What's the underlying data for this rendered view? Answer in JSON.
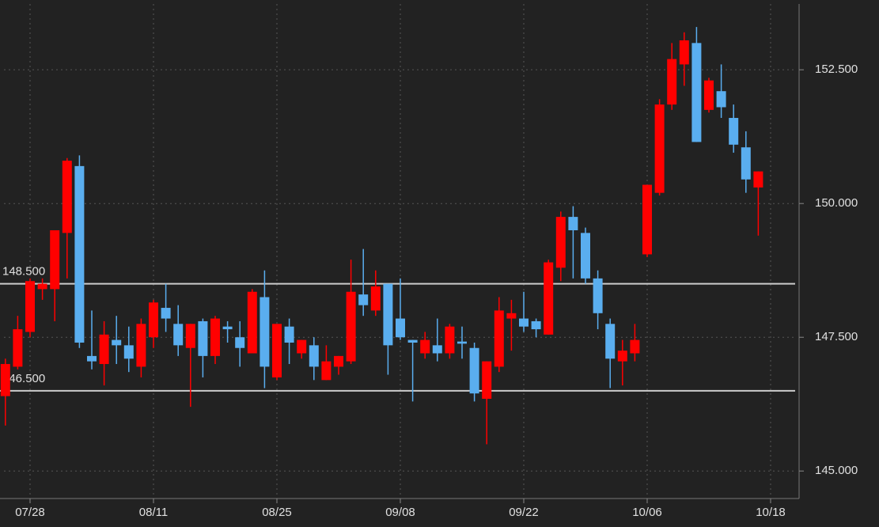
{
  "chart_data": {
    "type": "candlestick",
    "categories": [
      null,
      null,
      "07/28",
      null,
      null,
      null,
      null,
      null,
      null,
      null,
      null,
      null,
      "08/11",
      null,
      null,
      null,
      null,
      null,
      null,
      null,
      null,
      null,
      "08/25",
      null,
      null,
      null,
      null,
      null,
      null,
      null,
      null,
      null,
      "09/08",
      null,
      null,
      null,
      null,
      null,
      null,
      null,
      null,
      null,
      "09/22",
      null,
      null,
      null,
      null,
      null,
      null,
      null,
      null,
      null,
      "10/06",
      null,
      null,
      null,
      null,
      null,
      null,
      null,
      null,
      null,
      "10/18"
    ],
    "open": [
      146.4,
      146.95,
      147.6,
      148.4,
      148.4,
      149.45,
      150.7,
      147.15,
      147.0,
      147.45,
      147.35,
      146.95,
      147.5,
      148.05,
      147.75,
      147.3,
      147.8,
      147.15,
      147.7,
      147.5,
      147.2,
      148.25,
      146.75,
      147.7,
      147.2,
      147.35,
      146.7,
      146.95,
      147.05,
      148.3,
      148.0,
      148.5,
      147.85,
      147.45,
      147.2,
      147.35,
      147.2,
      147.42,
      147.3,
      146.35,
      146.95,
      147.85,
      147.85,
      147.8,
      147.55,
      148.8,
      149.75,
      149.45,
      148.6,
      147.75,
      147.05,
      147.2,
      149.05,
      150.2,
      151.85,
      152.6,
      153.0,
      151.75,
      152.1,
      151.6,
      151.05,
      150.3,
      null
    ],
    "high": [
      147.1,
      147.9,
      148.6,
      148.6,
      149.5,
      150.85,
      150.9,
      148.0,
      147.8,
      147.9,
      147.7,
      147.85,
      148.2,
      148.5,
      148.1,
      147.75,
      147.85,
      147.9,
      147.8,
      147.8,
      148.4,
      148.75,
      147.75,
      147.85,
      147.45,
      147.5,
      147.35,
      147.15,
      148.95,
      149.15,
      148.75,
      148.5,
      148.6,
      147.45,
      147.6,
      147.85,
      147.75,
      147.7,
      147.4,
      147.05,
      148.25,
      148.2,
      148.35,
      147.85,
      148.95,
      149.85,
      149.95,
      149.55,
      148.75,
      147.85,
      147.45,
      147.75,
      150.35,
      151.95,
      153.0,
      153.2,
      153.3,
      152.35,
      152.6,
      151.85,
      151.35,
      150.6,
      null
    ],
    "low": [
      145.85,
      146.9,
      147.5,
      148.2,
      147.8,
      148.6,
      147.3,
      146.9,
      146.6,
      147.0,
      146.85,
      146.75,
      147.3,
      147.6,
      147.15,
      146.2,
      146.75,
      147.0,
      147.4,
      146.95,
      147.2,
      146.55,
      146.7,
      147.0,
      147.1,
      146.7,
      146.7,
      146.8,
      147.0,
      147.9,
      147.9,
      146.8,
      147.45,
      146.3,
      147.1,
      147.05,
      147.1,
      147.1,
      146.3,
      145.5,
      146.85,
      147.25,
      147.6,
      147.5,
      147.55,
      148.55,
      148.6,
      148.5,
      147.65,
      146.55,
      146.6,
      147.05,
      149.0,
      150.15,
      151.75,
      152.2,
      151.15,
      151.7,
      151.6,
      150.95,
      150.2,
      149.4,
      null
    ],
    "close": [
      147.0,
      147.65,
      148.55,
      148.5,
      149.5,
      150.8,
      147.4,
      147.05,
      147.55,
      147.35,
      147.1,
      147.75,
      148.15,
      147.85,
      147.35,
      147.75,
      147.15,
      147.85,
      147.65,
      147.3,
      148.35,
      146.95,
      147.75,
      147.4,
      147.45,
      146.95,
      147.05,
      147.15,
      148.35,
      148.1,
      148.45,
      147.35,
      147.5,
      147.4,
      147.45,
      147.2,
      147.7,
      147.38,
      146.45,
      147.05,
      148.0,
      147.95,
      147.7,
      147.65,
      148.9,
      149.75,
      149.5,
      148.6,
      147.95,
      147.1,
      147.25,
      147.45,
      150.35,
      151.85,
      152.7,
      153.05,
      151.15,
      152.3,
      151.8,
      151.1,
      150.45,
      150.6,
      null
    ],
    "up_color": "#ff0000",
    "down_color": "#5aaeef",
    "ylim": [
      144.56,
      153.73
    ],
    "yticks": [
      {
        "value": 145,
        "label": "145.000"
      },
      {
        "value": 147.5,
        "label": "147.500"
      },
      {
        "value": 150,
        "label": "150.000"
      },
      {
        "value": 152.5,
        "label": "152.500"
      }
    ],
    "grid": true,
    "hlines": [
      {
        "value": 148.5,
        "label": "148.500"
      },
      {
        "value": 146.5,
        "label": "146.500"
      }
    ]
  }
}
